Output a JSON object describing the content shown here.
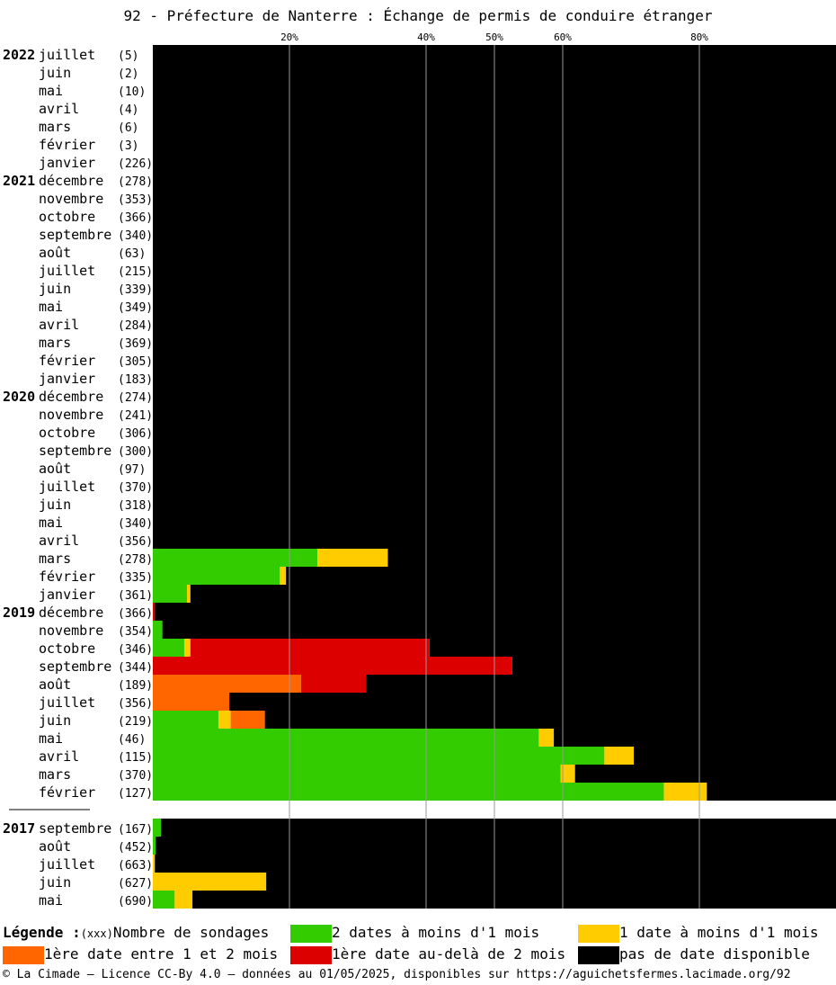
{
  "title": "92 - Préfecture de Nanterre : Échange de permis de conduire étranger",
  "colors": {
    "green": "#33cc00",
    "yellow": "#ffcc00",
    "orange": "#ff6600",
    "red": "#dd0000",
    "black": "#000000"
  },
  "legend": {
    "heading": "Légende :",
    "count_key": "(xxx)",
    "count_label": "Nombre de sondages",
    "green": "2 dates à moins d'1 mois",
    "yellow": "1 date à moins d'1 mois",
    "orange": "1ère date entre 1 et 2 mois",
    "red": "1ère date au-delà de 2 mois",
    "black": "pas de date disponible"
  },
  "footer": "© La Cimade — Licence CC-By 4.0 — données au 01/05/2025, disponibles sur https://aguichetsfermes.lacimade.org/92",
  "chart_data": {
    "type": "bar",
    "orientation": "horizontal-stacked",
    "xlim": [
      0,
      100
    ],
    "x_ticks": [
      {
        "value": 20,
        "label": "20%"
      },
      {
        "value": 40,
        "label": "40%"
      },
      {
        "value": 50,
        "label": "50%"
      },
      {
        "value": 60,
        "label": "60%"
      },
      {
        "value": 80,
        "label": "80%"
      }
    ],
    "series_order": [
      "green",
      "yellow",
      "orange",
      "red",
      "black"
    ],
    "groups": [
      {
        "rows": [
          {
            "year": "2022",
            "month": "juillet",
            "count": "(5)",
            "values": [
              0,
              0,
              0,
              0,
              100
            ]
          },
          {
            "year": "",
            "month": "juin",
            "count": "(2)",
            "values": [
              0,
              0,
              0,
              0,
              100
            ]
          },
          {
            "year": "",
            "month": "mai",
            "count": "(10)",
            "values": [
              0,
              0,
              0,
              0,
              100
            ]
          },
          {
            "year": "",
            "month": "avril",
            "count": "(4)",
            "values": [
              0,
              0,
              0,
              0,
              100
            ]
          },
          {
            "year": "",
            "month": "mars",
            "count": "(6)",
            "values": [
              0,
              0,
              0,
              0,
              100
            ]
          },
          {
            "year": "",
            "month": "février",
            "count": "(3)",
            "values": [
              0,
              0,
              0,
              0,
              100
            ]
          },
          {
            "year": "",
            "month": "janvier",
            "count": "(226)",
            "values": [
              0,
              0,
              0,
              0,
              100
            ]
          },
          {
            "year": "2021",
            "month": "décembre",
            "count": "(278)",
            "values": [
              0,
              0,
              0,
              0,
              100
            ]
          },
          {
            "year": "",
            "month": "novembre",
            "count": "(353)",
            "values": [
              0,
              0,
              0,
              0,
              100
            ]
          },
          {
            "year": "",
            "month": "octobre",
            "count": "(366)",
            "values": [
              0,
              0,
              0,
              0,
              100
            ]
          },
          {
            "year": "",
            "month": "septembre",
            "count": "(340)",
            "values": [
              0,
              0,
              0,
              0,
              100
            ]
          },
          {
            "year": "",
            "month": "août",
            "count": "(63)",
            "values": [
              0,
              0,
              0,
              0,
              100
            ]
          },
          {
            "year": "",
            "month": "juillet",
            "count": "(215)",
            "values": [
              0,
              0,
              0,
              0,
              100
            ]
          },
          {
            "year": "",
            "month": "juin",
            "count": "(339)",
            "values": [
              0,
              0,
              0,
              0,
              100
            ]
          },
          {
            "year": "",
            "month": "mai",
            "count": "(349)",
            "values": [
              0,
              0,
              0,
              0,
              100
            ]
          },
          {
            "year": "",
            "month": "avril",
            "count": "(284)",
            "values": [
              0,
              0,
              0,
              0,
              100
            ]
          },
          {
            "year": "",
            "month": "mars",
            "count": "(369)",
            "values": [
              0,
              0,
              0,
              0,
              100
            ]
          },
          {
            "year": "",
            "month": "février",
            "count": "(305)",
            "values": [
              0,
              0,
              0,
              0,
              100
            ]
          },
          {
            "year": "",
            "month": "janvier",
            "count": "(183)",
            "values": [
              0,
              0,
              0,
              0,
              100
            ]
          },
          {
            "year": "2020",
            "month": "décembre",
            "count": "(274)",
            "values": [
              0,
              0,
              0,
              0,
              100
            ]
          },
          {
            "year": "",
            "month": "novembre",
            "count": "(241)",
            "values": [
              0,
              0,
              0,
              0,
              100
            ]
          },
          {
            "year": "",
            "month": "octobre",
            "count": "(306)",
            "values": [
              0,
              0,
              0,
              0,
              100
            ]
          },
          {
            "year": "",
            "month": "septembre",
            "count": "(300)",
            "values": [
              0,
              0,
              0,
              0,
              100
            ]
          },
          {
            "year": "",
            "month": "août",
            "count": "(97)",
            "values": [
              0,
              0,
              0,
              0,
              100
            ]
          },
          {
            "year": "",
            "month": "juillet",
            "count": "(370)",
            "values": [
              0,
              0,
              0,
              0,
              100
            ]
          },
          {
            "year": "",
            "month": "juin",
            "count": "(318)",
            "values": [
              0,
              0,
              0,
              0,
              100
            ]
          },
          {
            "year": "",
            "month": "mai",
            "count": "(340)",
            "values": [
              0,
              0,
              0,
              0,
              100
            ]
          },
          {
            "year": "",
            "month": "avril",
            "count": "(356)",
            "values": [
              0,
              0,
              0,
              0,
              100
            ]
          },
          {
            "year": "",
            "month": "mars",
            "count": "(278)",
            "values": [
              24.1,
              10.3,
              0,
              0,
              65.6
            ]
          },
          {
            "year": "",
            "month": "février",
            "count": "(335)",
            "values": [
              18.6,
              0.9,
              0,
              0,
              80.5
            ]
          },
          {
            "year": "",
            "month": "janvier",
            "count": "(361)",
            "values": [
              5.0,
              0.5,
              0,
              0,
              94.5
            ]
          },
          {
            "year": "2019",
            "month": "décembre",
            "count": "(366)",
            "values": [
              0,
              0,
              0,
              0.3,
              99.7
            ]
          },
          {
            "year": "",
            "month": "novembre",
            "count": "(354)",
            "values": [
              1.4,
              0,
              0,
              0,
              98.6
            ]
          },
          {
            "year": "",
            "month": "octobre",
            "count": "(346)",
            "values": [
              4.6,
              0.9,
              0,
              35.0,
              59.5
            ]
          },
          {
            "year": "",
            "month": "septembre",
            "count": "(344)",
            "values": [
              0,
              0,
              0,
              52.6,
              47.4
            ]
          },
          {
            "year": "",
            "month": "août",
            "count": "(189)",
            "values": [
              0,
              0,
              21.7,
              9.5,
              68.8
            ]
          },
          {
            "year": "",
            "month": "juillet",
            "count": "(356)",
            "values": [
              0,
              0,
              11.2,
              0,
              88.8
            ]
          },
          {
            "year": "",
            "month": "juin",
            "count": "(219)",
            "values": [
              9.6,
              1.8,
              5.0,
              0,
              83.6
            ]
          },
          {
            "year": "",
            "month": "mai",
            "count": "(46)",
            "values": [
              56.5,
              2.2,
              0,
              0,
              41.3
            ]
          },
          {
            "year": "",
            "month": "avril",
            "count": "(115)",
            "values": [
              66.1,
              4.3,
              0,
              0,
              29.6
            ]
          },
          {
            "year": "",
            "month": "mars",
            "count": "(370)",
            "values": [
              59.7,
              2.1,
              0,
              0,
              38.2
            ]
          },
          {
            "year": "",
            "month": "février",
            "count": "(127)",
            "values": [
              74.8,
              6.3,
              0,
              0,
              18.9
            ]
          }
        ]
      },
      {
        "rows": [
          {
            "year": "2017",
            "month": "septembre",
            "count": "(167)",
            "values": [
              1.2,
              0,
              0,
              0,
              98.8
            ]
          },
          {
            "year": "",
            "month": "août",
            "count": "(452)",
            "values": [
              0.4,
              0,
              0,
              0,
              99.6
            ]
          },
          {
            "year": "",
            "month": "juillet",
            "count": "(663)",
            "values": [
              0,
              0.3,
              0,
              0,
              99.7
            ]
          },
          {
            "year": "",
            "month": "juin",
            "count": "(627)",
            "values": [
              0,
              16.6,
              0,
              0,
              83.4
            ]
          },
          {
            "year": "",
            "month": "mai",
            "count": "(690)",
            "values": [
              3.2,
              2.6,
              0,
              0,
              94.2
            ]
          }
        ]
      }
    ]
  }
}
